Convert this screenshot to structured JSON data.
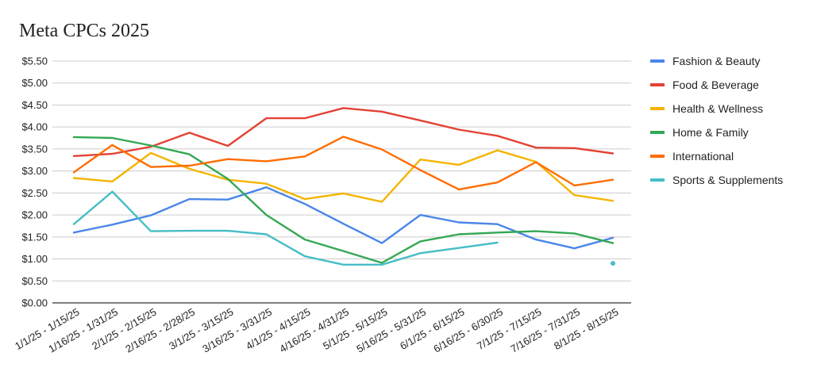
{
  "chart_data": {
    "type": "line",
    "title": "Meta CPCs 2025",
    "xlabel": "",
    "ylabel": "",
    "ylim": [
      0,
      5.5
    ],
    "y_ticks": [
      0,
      0.5,
      1.0,
      1.5,
      2.0,
      2.5,
      3.0,
      3.5,
      4.0,
      4.5,
      5.0,
      5.5
    ],
    "y_tick_labels": [
      "$0.00",
      "$0.50",
      "$1.00",
      "$1.50",
      "$2.00",
      "$2.50",
      "$3.00",
      "$3.50",
      "$4.00",
      "$4.50",
      "$5.00",
      "$5.50"
    ],
    "grid": true,
    "legend_position": "right",
    "categories": [
      "1/1/25 - 1/15/25",
      "1/16/25 - 1/31/25",
      "2/1/25 - 2/15/25",
      "2/16/25 - 2/28/25",
      "3/1/25 - 3/15/25",
      "3/16/25 - 3/31/25",
      "4/1/25 - 4/15/25",
      "4/16/25 - 4/31/25",
      "5/1/25 - 5/15/25",
      "5/16/25 - 5/31/25",
      "6/1/25 - 6/15/25",
      "6/16/25 - 6/30/25",
      "7/1/25 - 7/15/25",
      "7/16/25 - 7/31/25",
      "8/1/25 - 8/15/25"
    ],
    "series": [
      {
        "name": "Fashion & Beauty",
        "color": "#4a86e8",
        "values": [
          1.6,
          1.78,
          1.99,
          2.36,
          2.35,
          2.63,
          2.25,
          1.8,
          1.36,
          2.0,
          1.83,
          1.79,
          1.44,
          1.24,
          1.48
        ]
      },
      {
        "name": "Food & Beverage",
        "color": "#e34234",
        "values": [
          3.34,
          3.39,
          3.55,
          3.87,
          3.57,
          4.2,
          4.2,
          4.43,
          4.35,
          4.15,
          3.94,
          3.8,
          3.53,
          3.52,
          3.4
        ]
      },
      {
        "name": "Health & Wellness",
        "color": "#f4b400",
        "values": [
          2.84,
          2.76,
          3.41,
          3.05,
          2.8,
          2.71,
          2.36,
          2.49,
          2.3,
          3.26,
          3.14,
          3.47,
          3.21,
          2.45,
          2.32
        ]
      },
      {
        "name": "Home & Family",
        "color": "#34a853",
        "values": [
          3.77,
          3.75,
          3.58,
          3.38,
          2.82,
          2.0,
          1.44,
          1.18,
          0.91,
          1.4,
          1.56,
          1.6,
          1.63,
          1.58,
          1.36
        ]
      },
      {
        "name": "International",
        "color": "#ff6d01",
        "values": [
          2.97,
          3.59,
          3.09,
          3.12,
          3.27,
          3.22,
          3.33,
          3.78,
          3.49,
          3.02,
          2.58,
          2.74,
          3.2,
          2.67,
          2.8
        ]
      },
      {
        "name": "Sports & Supplements",
        "color": "#46bdc6",
        "values": [
          1.79,
          2.53,
          1.63,
          1.64,
          1.64,
          1.56,
          1.06,
          0.87,
          0.87,
          1.13,
          1.25,
          1.37,
          null,
          null,
          0.9
        ]
      }
    ]
  }
}
